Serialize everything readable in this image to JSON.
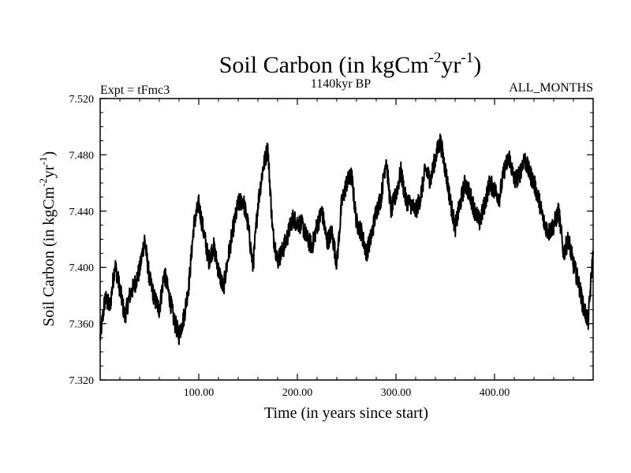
{
  "chart_data": {
    "type": "line",
    "title_parts": {
      "main": "Soil Carbon (in kgCm",
      "exp1": "-2",
      "mid": "yr",
      "exp2": "-1",
      "close": ")"
    },
    "subtitle_left": "Expt = tFmc3",
    "subtitle_center": "1140kyr BP",
    "subtitle_right": "ALL_MONTHS",
    "xlabel": "Time (in years since start)",
    "ylabel_parts": {
      "main": "Soil Carbon (in kgCm",
      "exp1": "-2",
      "mid": "yr",
      "exp2": "-1",
      "close": ")"
    },
    "xlim": [
      0,
      500
    ],
    "ylim": [
      7.32,
      7.52
    ],
    "x_ticks": [
      100,
      200,
      300,
      400
    ],
    "x_tick_labels": [
      "100.00",
      "200.00",
      "300.00",
      "400.00"
    ],
    "y_ticks": [
      7.32,
      7.36,
      7.4,
      7.44,
      7.48,
      7.52
    ],
    "y_tick_labels": [
      "7.320",
      "7.360",
      "7.400",
      "7.440",
      "7.480",
      "7.520"
    ],
    "series": [
      {
        "name": "Soil Carbon",
        "color": "#000000",
        "x": [
          0,
          5,
          10,
          15,
          20,
          25,
          30,
          35,
          40,
          45,
          50,
          55,
          60,
          65,
          70,
          75,
          80,
          85,
          90,
          95,
          100,
          105,
          110,
          115,
          120,
          125,
          130,
          135,
          140,
          145,
          150,
          155,
          160,
          165,
          170,
          175,
          180,
          185,
          190,
          195,
          200,
          205,
          210,
          215,
          220,
          225,
          230,
          235,
          240,
          245,
          250,
          255,
          260,
          265,
          270,
          275,
          280,
          285,
          290,
          295,
          300,
          305,
          310,
          315,
          320,
          325,
          330,
          335,
          340,
          345,
          350,
          355,
          360,
          365,
          370,
          375,
          380,
          385,
          390,
          395,
          400,
          405,
          410,
          415,
          420,
          425,
          430,
          435,
          440,
          445,
          450,
          455,
          460,
          465,
          470,
          475,
          480,
          485,
          490,
          495,
          500
        ],
        "y": [
          7.35,
          7.378,
          7.372,
          7.402,
          7.385,
          7.365,
          7.38,
          7.388,
          7.398,
          7.42,
          7.392,
          7.378,
          7.37,
          7.396,
          7.38,
          7.362,
          7.352,
          7.365,
          7.388,
          7.43,
          7.445,
          7.425,
          7.405,
          7.415,
          7.398,
          7.385,
          7.408,
          7.428,
          7.445,
          7.448,
          7.43,
          7.4,
          7.445,
          7.47,
          7.485,
          7.425,
          7.405,
          7.412,
          7.422,
          7.435,
          7.432,
          7.43,
          7.42,
          7.415,
          7.43,
          7.44,
          7.418,
          7.425,
          7.403,
          7.446,
          7.46,
          7.465,
          7.432,
          7.425,
          7.41,
          7.422,
          7.44,
          7.45,
          7.478,
          7.44,
          7.452,
          7.468,
          7.448,
          7.445,
          7.44,
          7.45,
          7.47,
          7.462,
          7.478,
          7.49,
          7.47,
          7.448,
          7.428,
          7.445,
          7.46,
          7.452,
          7.44,
          7.432,
          7.445,
          7.46,
          7.455,
          7.45,
          7.47,
          7.478,
          7.462,
          7.465,
          7.478,
          7.468,
          7.46,
          7.448,
          7.432,
          7.425,
          7.43,
          7.44,
          7.41,
          7.42,
          7.402,
          7.39,
          7.372,
          7.362,
          7.412
        ]
      }
    ]
  }
}
